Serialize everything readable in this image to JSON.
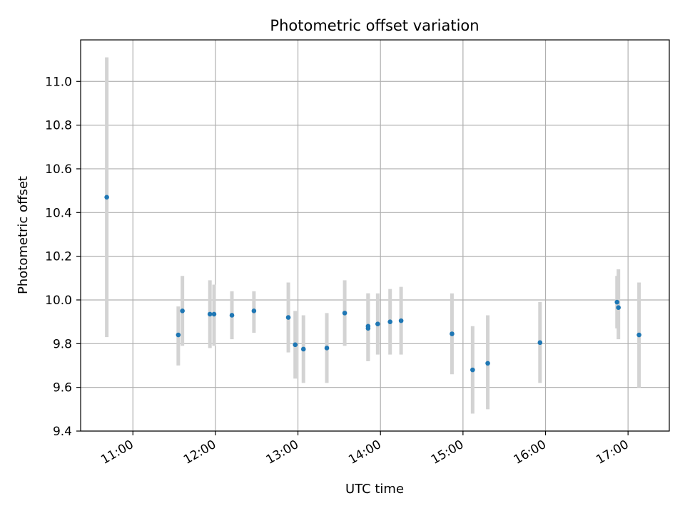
{
  "chart_data": {
    "type": "scatter",
    "title": "Photometric offset variation",
    "xlabel": "UTC time",
    "ylabel": "Photometric offset",
    "x_axis_type": "time",
    "xlim": [
      "10:22",
      "17:30"
    ],
    "ylim": [
      9.4,
      11.19
    ],
    "x_ticks": [
      "11:00",
      "12:00",
      "13:00",
      "14:00",
      "15:00",
      "16:00",
      "17:00"
    ],
    "y_ticks": [
      "9.4",
      "9.6",
      "9.8",
      "10.0",
      "10.2",
      "10.4",
      "10.6",
      "10.8",
      "11.0"
    ],
    "grid": true,
    "marker_color": "#1f77b4",
    "errorbar_color": "#d3d3d3",
    "points": [
      {
        "x": "10:41",
        "y": 10.47,
        "ylow": 9.83,
        "yhigh": 11.11
      },
      {
        "x": "11:33",
        "y": 9.84,
        "ylow": 9.7,
        "yhigh": 9.97
      },
      {
        "x": "11:36",
        "y": 9.95,
        "ylow": 9.79,
        "yhigh": 10.11
      },
      {
        "x": "11:56",
        "y": 9.935,
        "ylow": 9.78,
        "yhigh": 10.09
      },
      {
        "x": "11:59",
        "y": 9.935,
        "ylow": 9.79,
        "yhigh": 10.07
      },
      {
        "x": "12:12",
        "y": 9.93,
        "ylow": 9.82,
        "yhigh": 10.04
      },
      {
        "x": "12:28",
        "y": 9.95,
        "ylow": 9.85,
        "yhigh": 10.04
      },
      {
        "x": "12:53",
        "y": 9.92,
        "ylow": 9.76,
        "yhigh": 10.08
      },
      {
        "x": "12:58",
        "y": 9.795,
        "ylow": 9.64,
        "yhigh": 9.95
      },
      {
        "x": "13:04",
        "y": 9.775,
        "ylow": 9.62,
        "yhigh": 9.93
      },
      {
        "x": "13:21",
        "y": 9.78,
        "ylow": 9.62,
        "yhigh": 9.94
      },
      {
        "x": "13:34",
        "y": 9.94,
        "ylow": 9.79,
        "yhigh": 10.09
      },
      {
        "x": "13:51",
        "y": 9.88,
        "ylow": 9.72,
        "yhigh": 10.03
      },
      {
        "x": "13:51",
        "y": 9.87,
        "ylow": 9.72,
        "yhigh": 10.03
      },
      {
        "x": "13:58",
        "y": 9.89,
        "ylow": 9.75,
        "yhigh": 10.03
      },
      {
        "x": "14:07",
        "y": 9.9,
        "ylow": 9.75,
        "yhigh": 10.05
      },
      {
        "x": "14:15",
        "y": 9.905,
        "ylow": 9.75,
        "yhigh": 10.06
      },
      {
        "x": "14:52",
        "y": 9.845,
        "ylow": 9.66,
        "yhigh": 10.03
      },
      {
        "x": "15:07",
        "y": 9.68,
        "ylow": 9.48,
        "yhigh": 9.88
      },
      {
        "x": "15:18",
        "y": 9.71,
        "ylow": 9.5,
        "yhigh": 9.93
      },
      {
        "x": "15:56",
        "y": 9.805,
        "ylow": 9.62,
        "yhigh": 9.99
      },
      {
        "x": "16:52",
        "y": 9.99,
        "ylow": 9.87,
        "yhigh": 10.11
      },
      {
        "x": "16:53",
        "y": 9.965,
        "ylow": 9.82,
        "yhigh": 10.14
      },
      {
        "x": "17:08",
        "y": 9.84,
        "ylow": 9.6,
        "yhigh": 10.08
      }
    ]
  }
}
